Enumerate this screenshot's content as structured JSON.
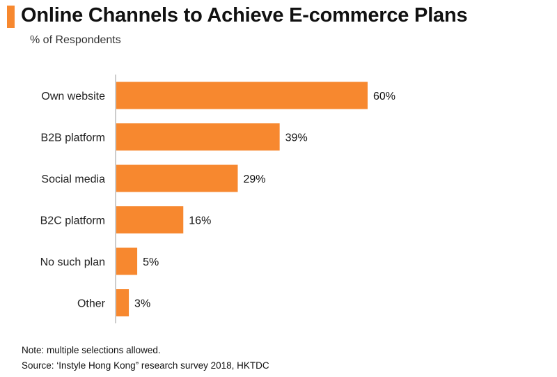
{
  "header": {
    "title": "Online Channels to Achieve E-commerce Plans",
    "subtitle": "% of Respondents"
  },
  "colors": {
    "accent": "#F7882F",
    "bar": "#F7882F",
    "axis": "#9A9A9A"
  },
  "chart_data": {
    "type": "bar",
    "orientation": "horizontal",
    "title": "Online Channels to Achieve E-commerce Plans",
    "subtitle": "% of Respondents",
    "categories": [
      "Own website",
      "B2B platform",
      "Social media",
      "B2C platform",
      "No such plan",
      "Other"
    ],
    "values": [
      60,
      39,
      29,
      16,
      5,
      3
    ],
    "value_labels": [
      "60%",
      "39%",
      "29%",
      "16%",
      "5%",
      "3%"
    ],
    "xlim": [
      0,
      60
    ],
    "grid": false,
    "legend": "none"
  },
  "notes": {
    "note": "Note: multiple selections allowed.",
    "source": "Source: ‘Instyle Hong Kong” research survey 2018, HKTDC"
  }
}
